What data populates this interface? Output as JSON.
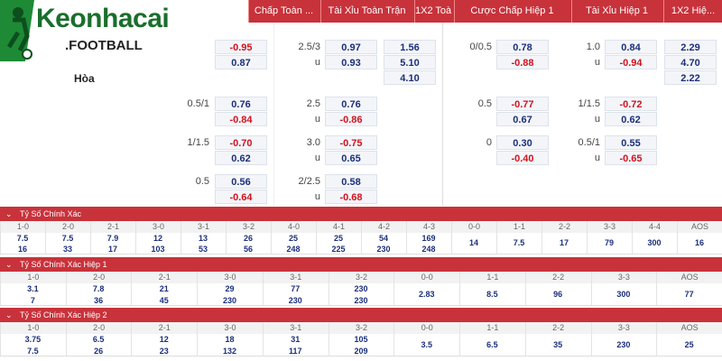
{
  "logo": {
    "name": "Keonhacai",
    "suffix": ".FOOTBALL"
  },
  "header": [
    "Chấp Toàn ...",
    "Tài Xỉu Toàn Trận",
    "1X2 Toà...",
    "Cược Chấp Hiệp 1",
    "Tài Xỉu Hiệp 1",
    "1X2 Hiệ..."
  ],
  "draw_label": "Hòa",
  "odds_rows": [
    {
      "ft_hcap": {
        "odds": [
          "-0.95",
          "0.87"
        ]
      },
      "ft_ou": {
        "line": "2.5/3",
        "under": "u",
        "odds": [
          "0.97",
          "0.93"
        ]
      },
      "ft_1x2": [
        "1.56",
        "5.10",
        "4.10"
      ],
      "h1_hcap": {
        "line": "0/0.5",
        "odds": [
          "0.78",
          "-0.88"
        ]
      },
      "h1_ou": {
        "line": "1.0",
        "under": "u",
        "odds": [
          "0.84",
          "-0.94"
        ]
      },
      "h1_1x2": [
        "2.29",
        "4.70",
        "2.22"
      ]
    },
    {
      "ft_hcap": {
        "line": "0.5/1",
        "odds": [
          "0.76",
          "-0.84"
        ]
      },
      "ft_ou": {
        "line": "2.5",
        "under": "u",
        "odds": [
          "0.76",
          "-0.86"
        ]
      },
      "h1_hcap": {
        "line": "0.5",
        "odds": [
          "-0.77",
          "0.67"
        ]
      },
      "h1_ou": {
        "line": "1/1.5",
        "under": "u",
        "odds": [
          "-0.72",
          "0.62"
        ]
      }
    },
    {
      "ft_hcap": {
        "line": "1/1.5",
        "odds": [
          "-0.70",
          "0.62"
        ]
      },
      "ft_ou": {
        "line": "3.0",
        "under": "u",
        "odds": [
          "-0.75",
          "0.65"
        ]
      },
      "h1_hcap": {
        "line": "0",
        "odds": [
          "0.30",
          "-0.40"
        ]
      },
      "h1_ou": {
        "line": "0.5/1",
        "under": "u",
        "odds": [
          "0.55",
          "-0.65"
        ]
      }
    },
    {
      "ft_hcap": {
        "line": "0.5",
        "odds": [
          "0.56",
          "-0.64"
        ]
      },
      "ft_ou": {
        "line": "2/2.5",
        "under": "u",
        "odds": [
          "0.58",
          "-0.68"
        ]
      }
    }
  ],
  "score_sections": [
    {
      "title": "Tỷ Số Chính Xác",
      "columns": [
        {
          "score": "1-0",
          "odds": [
            "7.5",
            "16"
          ]
        },
        {
          "score": "2-0",
          "odds": [
            "7.5",
            "33"
          ]
        },
        {
          "score": "2-1",
          "odds": [
            "7.9",
            "17"
          ]
        },
        {
          "score": "3-0",
          "odds": [
            "12",
            "103"
          ]
        },
        {
          "score": "3-1",
          "odds": [
            "13",
            "53"
          ]
        },
        {
          "score": "3-2",
          "odds": [
            "26",
            "56"
          ]
        },
        {
          "score": "4-0",
          "odds": [
            "25",
            "248"
          ]
        },
        {
          "score": "4-1",
          "odds": [
            "25",
            "225"
          ]
        },
        {
          "score": "4-2",
          "odds": [
            "54",
            "230"
          ]
        },
        {
          "score": "4-3",
          "odds": [
            "169",
            "248"
          ]
        },
        {
          "score": "0-0",
          "odds": [
            "14"
          ]
        },
        {
          "score": "1-1",
          "odds": [
            "7.5"
          ]
        },
        {
          "score": "2-2",
          "odds": [
            "17"
          ]
        },
        {
          "score": "3-3",
          "odds": [
            "79"
          ]
        },
        {
          "score": "4-4",
          "odds": [
            "300"
          ]
        },
        {
          "score": "AOS",
          "odds": [
            "16"
          ]
        }
      ]
    },
    {
      "title": "Tỷ Số Chính Xác Hiệp 1",
      "columns": [
        {
          "score": "1-0",
          "odds": [
            "3.1",
            "7"
          ]
        },
        {
          "score": "2-0",
          "odds": [
            "7.8",
            "36"
          ]
        },
        {
          "score": "2-1",
          "odds": [
            "21",
            "45"
          ]
        },
        {
          "score": "3-0",
          "odds": [
            "29",
            "230"
          ]
        },
        {
          "score": "3-1",
          "odds": [
            "77",
            "230"
          ]
        },
        {
          "score": "3-2",
          "odds": [
            "230",
            "230"
          ]
        },
        {
          "score": "0-0",
          "odds": [
            "2.83"
          ]
        },
        {
          "score": "1-1",
          "odds": [
            "8.5"
          ]
        },
        {
          "score": "2-2",
          "odds": [
            "96"
          ]
        },
        {
          "score": "3-3",
          "odds": [
            "300"
          ]
        },
        {
          "score": "AOS",
          "odds": [
            "77"
          ]
        }
      ]
    },
    {
      "title": "Tỷ Số Chính Xác Hiệp 2",
      "columns": [
        {
          "score": "1-0",
          "odds": [
            "3.75",
            "7.5"
          ]
        },
        {
          "score": "2-0",
          "odds": [
            "6.5",
            "26"
          ]
        },
        {
          "score": "2-1",
          "odds": [
            "12",
            "23"
          ]
        },
        {
          "score": "3-0",
          "odds": [
            "18",
            "132"
          ]
        },
        {
          "score": "3-1",
          "odds": [
            "31",
            "117"
          ]
        },
        {
          "score": "3-2",
          "odds": [
            "105",
            "209"
          ]
        },
        {
          "score": "0-0",
          "odds": [
            "3.5"
          ]
        },
        {
          "score": "1-1",
          "odds": [
            "6.5"
          ]
        },
        {
          "score": "2-2",
          "odds": [
            "35"
          ]
        },
        {
          "score": "3-3",
          "odds": [
            "230"
          ]
        },
        {
          "score": "AOS",
          "odds": [
            "25"
          ]
        }
      ]
    }
  ]
}
